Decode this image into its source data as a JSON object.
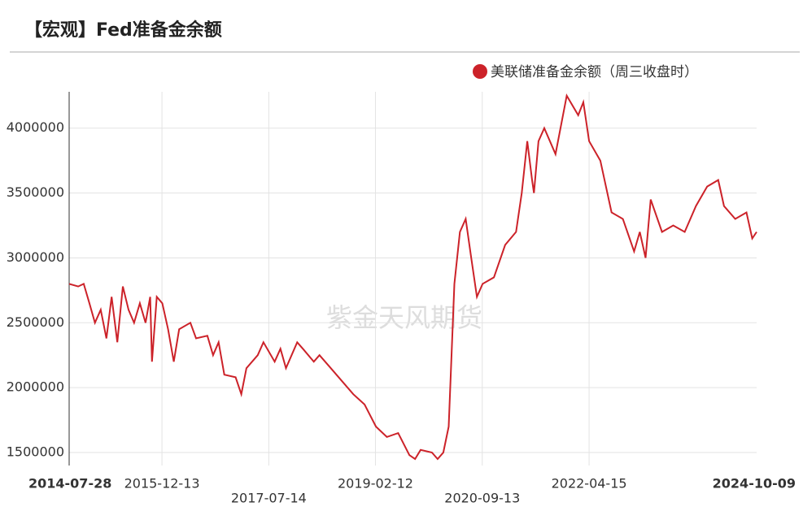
{
  "chart_data": {
    "type": "line",
    "title": "【宏观】Fed准备金余额",
    "watermark": "紫金天风期货",
    "legend": "top-right",
    "grid": true,
    "x": [
      "2014-07-28",
      "2014-09-15",
      "2014-10-15",
      "2014-11-15",
      "2014-12-15",
      "2015-01-15",
      "2015-02-15",
      "2015-03-15",
      "2015-04-15",
      "2015-05-15",
      "2015-06-15",
      "2015-07-15",
      "2015-08-15",
      "2015-09-15",
      "2015-10-10",
      "2015-10-20",
      "2015-11-15",
      "2015-12-15",
      "2016-01-15",
      "2016-02-15",
      "2016-03-15",
      "2016-05-15",
      "2016-06-15",
      "2016-08-15",
      "2016-09-15",
      "2016-10-15",
      "2016-11-15",
      "2017-01-15",
      "2017-02-15",
      "2017-03-15",
      "2017-05-15",
      "2017-06-15",
      "2017-08-15",
      "2017-09-15",
      "2017-10-15",
      "2017-12-15",
      "2018-01-15",
      "2018-03-15",
      "2018-04-15",
      "2018-06-15",
      "2018-08-15",
      "2018-10-15",
      "2018-12-15",
      "2019-02-15",
      "2019-04-15",
      "2019-06-15",
      "2019-08-15",
      "2019-09-15",
      "2019-10-15",
      "2019-12-15",
      "2020-01-15",
      "2020-02-15",
      "2020-03-15",
      "2020-04-15",
      "2020-05-15",
      "2020-06-15",
      "2020-07-15",
      "2020-08-15",
      "2020-09-15",
      "2020-11-15",
      "2021-01-15",
      "2021-03-15",
      "2021-04-15",
      "2021-05-15",
      "2021-06-10",
      "2021-06-20",
      "2021-07-15",
      "2021-08-15",
      "2021-10-15",
      "2021-12-15",
      "2022-02-15",
      "2022-03-15",
      "2022-04-15",
      "2022-06-15",
      "2022-08-15",
      "2022-10-15",
      "2022-12-15",
      "2023-01-15",
      "2023-02-15",
      "2023-03-15",
      "2023-05-15",
      "2023-07-15",
      "2023-09-15",
      "2023-11-15",
      "2024-01-15",
      "2024-03-15",
      "2024-04-15",
      "2024-06-15",
      "2024-08-15",
      "2024-09-15",
      "2024-10-09"
    ],
    "series": [
      {
        "name": "美联储准备金余额（周三收盘时）",
        "color": "#cc2229",
        "values": [
          2800000,
          2780000,
          2800000,
          2650000,
          2500000,
          2600000,
          2380000,
          2700000,
          2350000,
          2780000,
          2600000,
          2500000,
          2650000,
          2500000,
          2700000,
          2200000,
          2700000,
          2650000,
          2450000,
          2200000,
          2450000,
          2500000,
          2380000,
          2400000,
          2250000,
          2350000,
          2100000,
          2080000,
          1950000,
          2150000,
          2250000,
          2350000,
          2200000,
          2300000,
          2150000,
          2350000,
          2300000,
          2200000,
          2250000,
          2150000,
          2050000,
          1950000,
          1870000,
          1700000,
          1620000,
          1650000,
          1480000,
          1450000,
          1520000,
          1500000,
          1450000,
          1500000,
          1700000,
          2800000,
          3200000,
          3300000,
          3000000,
          2700000,
          2800000,
          2850000,
          3100000,
          3200000,
          3500000,
          3900000,
          3600000,
          3500000,
          3900000,
          4000000,
          3800000,
          4250000,
          4100000,
          4200000,
          3900000,
          3750000,
          3350000,
          3300000,
          3050000,
          3200000,
          3000000,
          3450000,
          3200000,
          3250000,
          3200000,
          3400000,
          3550000,
          3600000,
          3400000,
          3300000,
          3350000,
          3150000,
          3200000
        ]
      }
    ],
    "xlim": [
      "2014-07-28",
      "2024-10-09"
    ],
    "xticks": [
      "2014-07-28",
      "2015-12-13",
      "2017-07-14",
      "2019-02-12",
      "2020-09-13",
      "2022-04-15",
      "2024-10-09"
    ],
    "ylim": [
      1400000,
      4280000
    ],
    "yticks": [
      1500000,
      2000000,
      2500000,
      3000000,
      3500000,
      4000000
    ]
  }
}
